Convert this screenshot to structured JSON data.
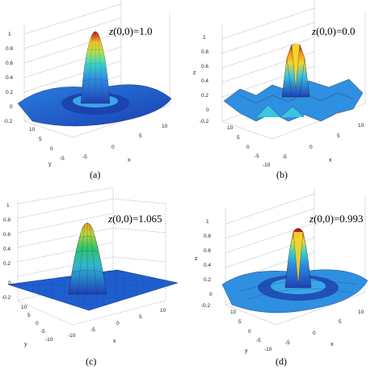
{
  "panels": [
    {
      "id": "a",
      "caption": "(a)",
      "annotation": "z(0,0)=1.0",
      "annotation_var": "z",
      "annotation_rest": "(0,0)=1.0",
      "z_ticks": [
        "1",
        "0.8",
        "0.6",
        "0.4",
        "0.2",
        "0",
        "-0.2"
      ],
      "y_ticks": [
        "10",
        "5",
        "0",
        "-5"
      ],
      "x_ticks": [
        "-5",
        "0",
        "5",
        "10"
      ],
      "xlabel": "x",
      "ylabel": "y",
      "zlabel": ""
    },
    {
      "id": "b",
      "caption": "(b)",
      "annotation": "z(0,0)=0.0",
      "annotation_var": "z",
      "annotation_rest": "(0,0)=0.0",
      "z_ticks": [
        "1",
        "0.8",
        "0.6",
        "0.4",
        "0.2",
        "0",
        "-0.2"
      ],
      "y_ticks": [
        "10",
        "5",
        "0",
        "-5",
        "-10"
      ],
      "x_ticks": [
        "-5",
        "0",
        "5",
        "10"
      ],
      "xlabel": "x",
      "ylabel": "",
      "zlabel": "z"
    },
    {
      "id": "c",
      "caption": "(c)",
      "annotation": "z(0,0)=1.065",
      "annotation_var": "z",
      "annotation_rest": "(0,0)=1.065",
      "z_ticks": [
        "1",
        "0.8",
        "0.6",
        "0.4",
        "0.2",
        "0",
        "-0.2"
      ],
      "y_ticks": [
        "10",
        "5",
        "0",
        "-5",
        "-10"
      ],
      "x_ticks": [
        "-10",
        "-5",
        "0",
        "5",
        "10"
      ],
      "xlabel": "x",
      "ylabel": "y",
      "zlabel": ""
    },
    {
      "id": "d",
      "caption": "(d)",
      "annotation": "z(0,0)=0.993",
      "annotation_var": "z",
      "annotation_rest": "(0,0)=0.993",
      "z_ticks": [
        "1",
        "0.8",
        "0.6",
        "0.4",
        "0.2",
        "0",
        "-0.2"
      ],
      "y_ticks": [
        "10",
        "5",
        "0",
        "-5",
        "-10"
      ],
      "x_ticks": [
        "-5",
        "0",
        "5",
        "10"
      ],
      "xlabel": "x",
      "ylabel": "y",
      "zlabel": "z"
    }
  ]
}
